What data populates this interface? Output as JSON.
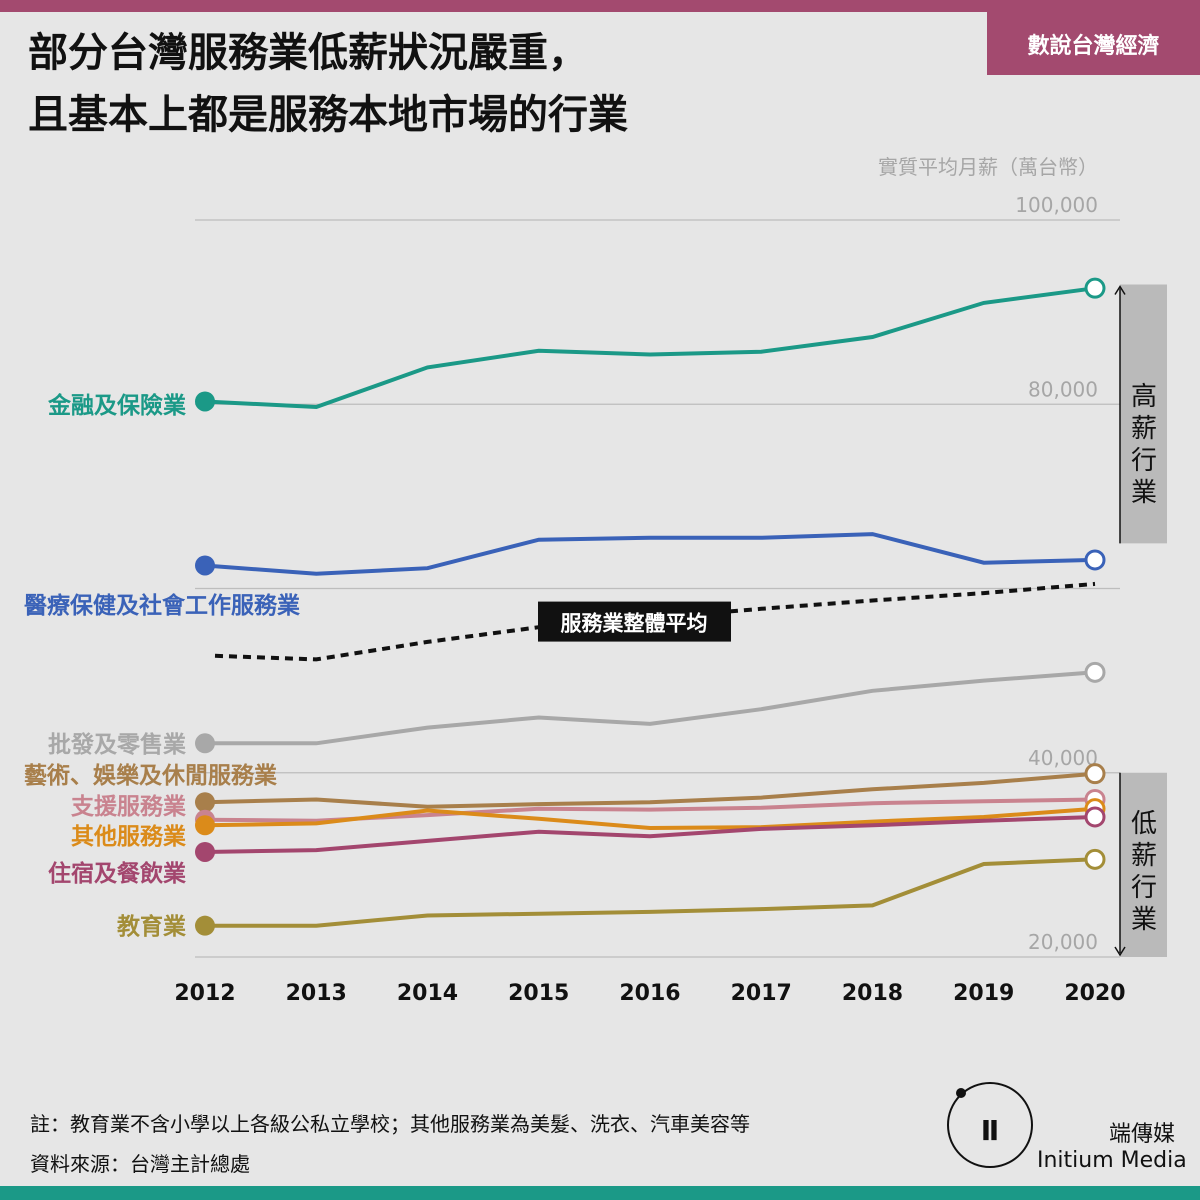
{
  "tag": "數說台灣經濟",
  "title_lines": [
    "部分台灣服務業低薪狀況嚴重，",
    "且基本上都是服務本地市場的行業"
  ],
  "chart_data": {
    "type": "line",
    "ylabel": "實質平均月薪（萬台幣）",
    "y_ticks": [
      "100,000",
      "80,000",
      "40,000",
      "20,000"
    ],
    "y_tick_values": [
      100000,
      80000,
      40000,
      20000
    ],
    "ylim": [
      20000,
      100000
    ],
    "x": [
      "2012",
      "2013",
      "2014",
      "2015",
      "2016",
      "2017",
      "2018",
      "2019",
      "2020"
    ],
    "series": [
      {
        "name": "金融及保險業",
        "color": "#1b9987",
        "values": [
          80300,
          79700,
          84000,
          85800,
          85400,
          85700,
          87300,
          91000,
          92600
        ]
      },
      {
        "name": "醫療保健及社會工作服務業",
        "color": "#3a62b8",
        "values": [
          62500,
          61600,
          62200,
          65300,
          65500,
          65500,
          65900,
          62800,
          63100
        ]
      },
      {
        "name": "服務業整體平均",
        "color": "#111111",
        "style": "dashed",
        "values": [
          52700,
          52300,
          54200,
          55800,
          56800,
          57800,
          58700,
          59500,
          60500
        ]
      },
      {
        "name": "批發及零售業",
        "color": "#a8a8a8",
        "values": [
          43200,
          43200,
          44900,
          46000,
          45300,
          46900,
          48900,
          50000,
          50900
        ]
      },
      {
        "name": "藝術、娛樂及休閒服務業",
        "color": "#a87f4b",
        "values": [
          36800,
          37100,
          36300,
          36600,
          36800,
          37300,
          38200,
          38900,
          39900
        ]
      },
      {
        "name": "支援服務業",
        "color": "#c9838f",
        "values": [
          34900,
          34800,
          35400,
          36100,
          36000,
          36200,
          36700,
          36900,
          37100
        ]
      },
      {
        "name": "其他服務業",
        "color": "#db8b1a",
        "values": [
          34300,
          34500,
          35900,
          35000,
          34000,
          34100,
          34700,
          35200,
          36100
        ]
      },
      {
        "name": "住宿及餐飲業",
        "color": "#a3466e",
        "values": [
          31400,
          31600,
          32600,
          33600,
          33100,
          33900,
          34300,
          34800,
          35200
        ]
      },
      {
        "name": "教育業",
        "color": "#a38e38",
        "values": [
          23400,
          23400,
          24500,
          24700,
          24900,
          25200,
          25600,
          30100,
          30600
        ]
      }
    ],
    "avg_label": "服務業整體平均",
    "band_high": "高薪行業",
    "band_low": "低薪行業"
  },
  "notes": {
    "note": "註：教育業不含小學以上各級公私立學校；其他服務業為美髮、洗衣、汽車美容等",
    "source": "資料來源：台灣主計總處"
  },
  "brand": {
    "zh": "端傳媒",
    "en": "Initium Media"
  }
}
